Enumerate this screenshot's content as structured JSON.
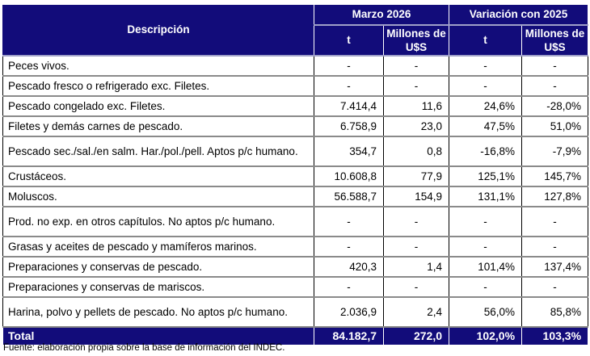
{
  "header": {
    "descripcion": "Descripción",
    "group1": "Marzo 2026",
    "group2": "Variación con 2025",
    "col_t": "t",
    "col_musd": "Millones de U$S"
  },
  "rows": [
    {
      "desc": "Peces vivos.",
      "t": "-",
      "musd": "-",
      "var_t": "-",
      "var_musd": "-"
    },
    {
      "desc": "Pescado fresco o refrigerado exc. Filetes.",
      "t": "-",
      "musd": "-",
      "var_t": "-",
      "var_musd": "-"
    },
    {
      "desc": "Pescado congelado exc. Filetes.",
      "t": "7.414,4",
      "musd": "11,6",
      "var_t": "24,6%",
      "var_musd": "-28,0%"
    },
    {
      "desc": "Filetes y demás carnes de pescado.",
      "t": "6.758,9",
      "musd": "23,0",
      "var_t": "47,5%",
      "var_musd": "51,0%"
    },
    {
      "desc": "Pescado sec./sal./en salm. Har./pol./pell. Aptos p/c humano.",
      "t": "354,7",
      "musd": "0,8",
      "var_t": "-16,8%",
      "var_musd": "-7,9%"
    },
    {
      "desc": "Crustáceos.",
      "t": "10.608,8",
      "musd": "77,9",
      "var_t": "125,1%",
      "var_musd": "145,7%"
    },
    {
      "desc": "Moluscos.",
      "t": "56.588,7",
      "musd": "154,9",
      "var_t": "131,1%",
      "var_musd": "127,8%"
    },
    {
      "desc": "Prod. no exp. en otros capítulos. No aptos p/c humano.",
      "t": "-",
      "musd": "-",
      "var_t": "-",
      "var_musd": "-"
    },
    {
      "desc": "Grasas y aceites de pescado y mamíferos marinos.",
      "t": "-",
      "musd": "-",
      "var_t": "-",
      "var_musd": "-"
    },
    {
      "desc": "Preparaciones y conservas de pescado.",
      "t": "420,3",
      "musd": "1,4",
      "var_t": "101,4%",
      "var_musd": "137,4%"
    },
    {
      "desc": "Preparaciones y conservas de mariscos.",
      "t": "-",
      "musd": "-",
      "var_t": "-",
      "var_musd": "-"
    },
    {
      "desc": "Harina, polvo y pellets de pescado. No aptos p/c humano.",
      "t": "2.036,9",
      "musd": "2,4",
      "var_t": "56,0%",
      "var_musd": "85,8%"
    }
  ],
  "total": {
    "desc": "Total",
    "t": "84.182,7",
    "musd": "272,0",
    "var_t": "102,0%",
    "var_musd": "103,3%"
  },
  "source": "Fuente: elaboración propia sobre la base de información del INDEC.",
  "colors": {
    "header_bg": "#120c7a",
    "header_text": "#ffffff"
  }
}
